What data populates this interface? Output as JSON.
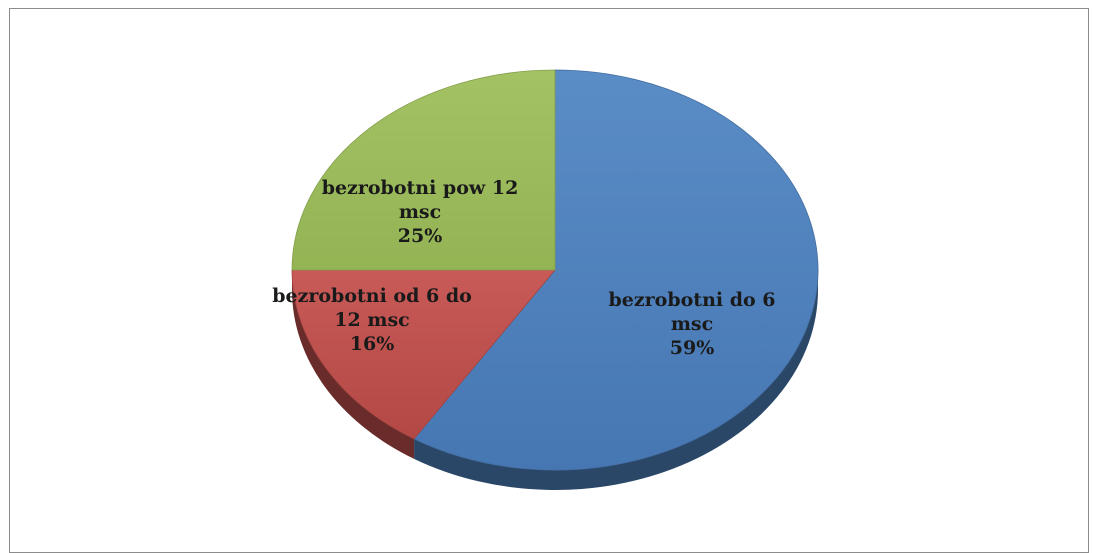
{
  "chart_data": {
    "type": "pie",
    "style": "3d",
    "categories": [
      "bezrobotni do 6 msc",
      "bezrobotni od 6 do 12 msc",
      "bezrobotni pow 12 msc"
    ],
    "values": [
      59,
      16,
      25
    ],
    "unit": "%",
    "colors": [
      "#4f81bd",
      "#c0504d",
      "#9bbb59"
    ],
    "data_labels": [
      {
        "line1": "bezrobotni do 6",
        "line2": "msc",
        "pct": "59%"
      },
      {
        "line1": "bezrobotni od 6 do",
        "line2": "12 msc",
        "pct": "16%"
      },
      {
        "line1": "bezrobotni pow 12",
        "line2": "msc",
        "pct": "25%"
      }
    ],
    "title": "",
    "legend": "none"
  }
}
